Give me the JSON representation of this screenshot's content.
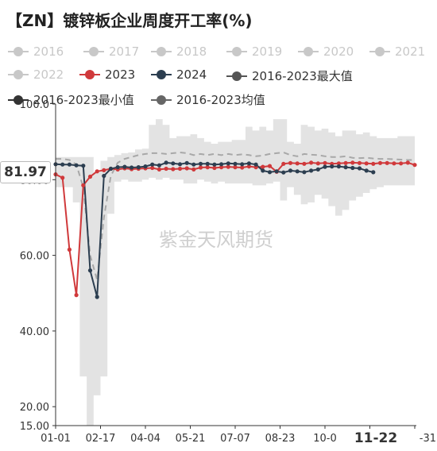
{
  "title": "【ZN】镀锌板企业周度开工率(%)",
  "watermark": "紫金天风期货",
  "current_value_label": "81.97",
  "highlight_x_label": "11-22",
  "chart_data": {
    "type": "line",
    "title": "【ZN】镀锌板企业周度开工率(%)",
    "xlabel": "",
    "ylabel": "",
    "ylim": [
      15,
      100
    ],
    "y_ticks": [
      "15.00",
      "20.00",
      "40.00",
      "60.00",
      "80.00",
      "100.0"
    ],
    "x_tick_labels": [
      "01-01",
      "02-17",
      "04-04",
      "05-21",
      "07-07",
      "08-23",
      "10-0",
      "11-22",
      "-31"
    ],
    "x_range_weeks": [
      0,
      52
    ],
    "grid": false,
    "legend_position": "top",
    "legend": [
      {
        "name": "2016",
        "color": "#c8c8c8",
        "faded": true
      },
      {
        "name": "2017",
        "color": "#c8c8c8",
        "faded": true
      },
      {
        "name": "2018",
        "color": "#c8c8c8",
        "faded": true
      },
      {
        "name": "2019",
        "color": "#c8c8c8",
        "faded": true
      },
      {
        "name": "2020",
        "color": "#c8c8c8",
        "faded": true
      },
      {
        "name": "2021",
        "color": "#c8c8c8",
        "faded": true
      },
      {
        "name": "2022",
        "color": "#c8c8c8",
        "faded": true
      },
      {
        "name": "2023",
        "color": "#d0393b",
        "faded": false
      },
      {
        "name": "2024",
        "color": "#2c3e50",
        "faded": false
      },
      {
        "name": "2016-2023最大值",
        "color": "#555555",
        "faded": false
      },
      {
        "name": "2016-2023最小值",
        "color": "#333333",
        "faded": false
      },
      {
        "name": "2016-2023均值",
        "color": "#666666",
        "faded": false
      }
    ],
    "series": [
      {
        "name": "2023",
        "color": "#d0393b",
        "x": [
          0,
          1,
          2,
          3,
          4,
          5,
          6,
          7,
          8,
          9,
          10,
          11,
          12,
          13,
          14,
          15,
          16,
          17,
          18,
          19,
          20,
          21,
          22,
          23,
          24,
          25,
          26,
          27,
          28,
          29,
          30,
          31,
          32,
          33,
          34,
          35,
          36,
          37,
          38,
          39,
          40,
          41,
          42,
          43,
          44,
          45,
          46,
          47,
          48,
          49,
          50,
          51,
          52
        ],
        "values": [
          81.4,
          80.5,
          61.5,
          49.5,
          78.5,
          80.8,
          82.2,
          82.5,
          82.9,
          82.7,
          83.0,
          82.8,
          82.9,
          83.0,
          83.1,
          82.7,
          82.9,
          82.8,
          82.9,
          83.0,
          82.7,
          83.2,
          83.3,
          83.1,
          83.3,
          83.4,
          83.3,
          83.2,
          83.5,
          83.3,
          83.4,
          83.6,
          82.1,
          84.2,
          84.4,
          84.3,
          84.2,
          84.5,
          84.3,
          84.4,
          84.2,
          84.3,
          84.4,
          84.5,
          84.4,
          84.3,
          84.2,
          84.4,
          84.4,
          84.3,
          84.3,
          84.5,
          83.9
        ]
      },
      {
        "name": "2024",
        "color": "#2c3e50",
        "x": [
          0,
          1,
          2,
          3,
          4,
          5,
          6,
          7,
          8,
          9,
          10,
          11,
          12,
          13,
          14,
          15,
          16,
          17,
          18,
          19,
          20,
          21,
          22,
          23,
          24,
          25,
          26,
          27,
          28,
          29,
          30,
          31,
          32,
          33,
          34,
          35,
          36,
          37,
          38,
          39,
          40,
          41,
          42,
          43,
          44,
          45,
          46
        ],
        "values": [
          84.1,
          84.0,
          84.0,
          83.8,
          83.7,
          56.0,
          49.0,
          81.0,
          82.9,
          83.3,
          83.4,
          83.2,
          83.3,
          83.5,
          84.0,
          83.8,
          84.5,
          84.3,
          84.1,
          84.4,
          84.0,
          84.2,
          84.2,
          84.0,
          84.1,
          84.3,
          84.2,
          84.1,
          84.3,
          84.0,
          82.4,
          82.0,
          82.2,
          81.9,
          82.4,
          82.2,
          82.0,
          82.4,
          82.7,
          83.4,
          83.5,
          83.5,
          83.3,
          83.1,
          83.0,
          82.4,
          81.97
        ]
      },
      {
        "name": "2016-2023均值",
        "color": "#aaaaaa",
        "dashed": true,
        "x": [
          0,
          1,
          2,
          3,
          4,
          5,
          6,
          7,
          8,
          9,
          10,
          11,
          12,
          13,
          14,
          15,
          16,
          17,
          18,
          19,
          20,
          21,
          22,
          23,
          24,
          25,
          26,
          27,
          28,
          29,
          30,
          31,
          32,
          33,
          34,
          35,
          36,
          37,
          38,
          39,
          40,
          41,
          42,
          43,
          44,
          45,
          46,
          47,
          48,
          49,
          50,
          51,
          52
        ],
        "values": [
          85.5,
          85.5,
          85.2,
          84.0,
          78.0,
          60.0,
          53.5,
          70.0,
          81.0,
          84.5,
          85.5,
          86.0,
          86.5,
          86.8,
          87.0,
          87.0,
          86.8,
          87.0,
          87.2,
          87.0,
          86.5,
          86.8,
          86.5,
          86.8,
          86.5,
          86.8,
          86.5,
          86.7,
          86.5,
          86.2,
          86.4,
          86.8,
          87.0,
          87.2,
          86.5,
          86.2,
          86.8,
          86.6,
          86.5,
          86.2,
          86.0,
          86.0,
          86.2,
          85.8,
          85.7,
          85.8,
          85.6,
          85.5,
          85.5,
          85.4,
          85.3,
          85.2,
          85.2
        ]
      },
      {
        "name": "2016-2023最大值",
        "color": "#e3e3e3",
        "x": [
          0,
          1,
          2,
          3,
          4,
          5,
          6,
          7,
          8,
          9,
          10,
          11,
          12,
          13,
          14,
          15,
          16,
          17,
          18,
          19,
          20,
          21,
          22,
          23,
          24,
          25,
          26,
          27,
          28,
          29,
          30,
          31,
          32,
          33,
          34,
          35,
          36,
          37,
          38,
          39,
          40,
          41,
          42,
          43,
          44,
          45,
          46,
          47,
          48,
          49,
          50,
          51,
          52
        ],
        "values": [
          86.0,
          86.0,
          86.0,
          86.0,
          86.0,
          86.0,
          82.0,
          85.0,
          86.0,
          86.5,
          87.0,
          87.2,
          88.0,
          88.2,
          94.5,
          96.0,
          94.5,
          91.0,
          91.5,
          91.5,
          92.0,
          91.0,
          90.0,
          89.5,
          90.0,
          90.0,
          90.5,
          90.5,
          94.0,
          93.0,
          94.0,
          93.0,
          96.0,
          96.0,
          90.0,
          89.5,
          94.5,
          94.0,
          93.0,
          93.5,
          92.5,
          91.5,
          93.0,
          93.0,
          92.0,
          92.5,
          91.5,
          91.0,
          91.0,
          91.0,
          91.5,
          91.5,
          91.5
        ]
      },
      {
        "name": "2016-2023最小值",
        "color": "#e3e3e3",
        "x": [
          0,
          1,
          2,
          3,
          4,
          5,
          6,
          7,
          8,
          9,
          10,
          11,
          12,
          13,
          14,
          15,
          16,
          17,
          18,
          19,
          20,
          21,
          22,
          23,
          24,
          25,
          26,
          27,
          28,
          29,
          30,
          31,
          32,
          33,
          34,
          35,
          36,
          37,
          38,
          39,
          40,
          41,
          42,
          43,
          44,
          45,
          46,
          47,
          48,
          49,
          50,
          51,
          52
        ],
        "values": [
          78.0,
          78.0,
          78.0,
          74.0,
          28.0,
          15.0,
          23.0,
          28.0,
          71.0,
          79.5,
          80.0,
          79.5,
          79.5,
          80.0,
          80.5,
          80.0,
          80.5,
          80.0,
          80.0,
          79.0,
          79.0,
          80.0,
          79.5,
          79.0,
          79.5,
          79.0,
          79.0,
          79.0,
          79.0,
          78.5,
          78.5,
          79.0,
          79.5,
          74.5,
          78.0,
          76.0,
          73.5,
          74.0,
          76.0,
          75.0,
          73.0,
          70.5,
          72.0,
          74.5,
          75.5,
          76.5,
          77.5,
          78.0,
          78.5,
          78.5,
          78.5,
          78.5,
          78.5
        ]
      }
    ]
  }
}
